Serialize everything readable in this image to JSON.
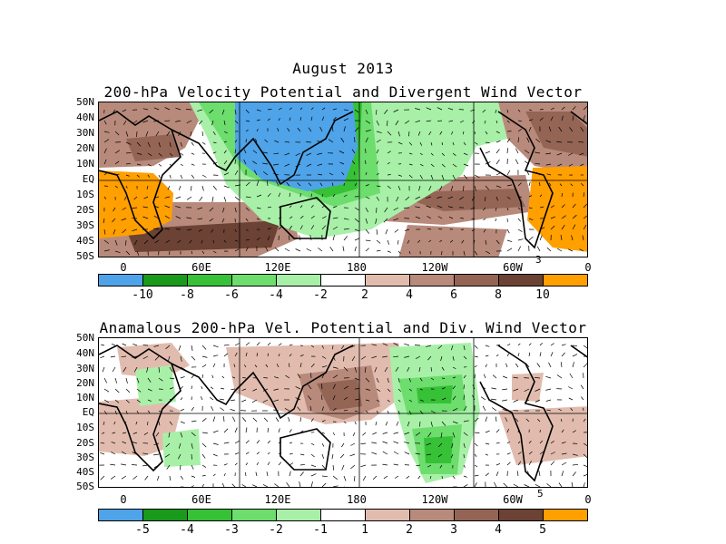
{
  "map1": {
    "title_line1": "August 2013",
    "title_line2": "200-hPa Velocity Potential and Divergent Wind Vector",
    "lat_labels": [
      "50N",
      "40N",
      "30N",
      "20N",
      "10N",
      "EQ",
      "10S",
      "20S",
      "30S",
      "40S",
      "50S"
    ],
    "lon_labels": [
      "0",
      "60E",
      "120E",
      "180",
      "120W",
      "60W",
      "0"
    ],
    "ref_vector": "3",
    "colorbar_labels": [
      "-10",
      "-8",
      "-6",
      "-4",
      "-2",
      "2",
      "4",
      "6",
      "8",
      "10"
    ],
    "colorbar_colors": [
      "#4fa3e8",
      "#1a9a1a",
      "#36c136",
      "#6ddd6d",
      "#a8f0a8",
      "#ffffff",
      "#e1bcae",
      "#b88a7b",
      "#946555",
      "#6b4234",
      "#ff9f00"
    ]
  },
  "map2": {
    "title": "Anamalous 200-hPa Vel. Potential and Div. Wind Vector",
    "lat_labels": [
      "50N",
      "40N",
      "30N",
      "20N",
      "10N",
      "EQ",
      "10S",
      "20S",
      "30S",
      "40S",
      "50S"
    ],
    "lon_labels": [
      "0",
      "60E",
      "120E",
      "180",
      "120W",
      "60W",
      "0"
    ],
    "ref_vector": "5",
    "colorbar_labels": [
      "-5",
      "-4",
      "-3",
      "-2",
      "-1",
      "1",
      "2",
      "3",
      "4",
      "5"
    ],
    "colorbar_colors": [
      "#4fa3e8",
      "#1a9a1a",
      "#36c136",
      "#6ddd6d",
      "#a8f0a8",
      "#ffffff",
      "#e1bcae",
      "#b88a7b",
      "#946555",
      "#6b4234",
      "#ff9f00"
    ]
  }
}
